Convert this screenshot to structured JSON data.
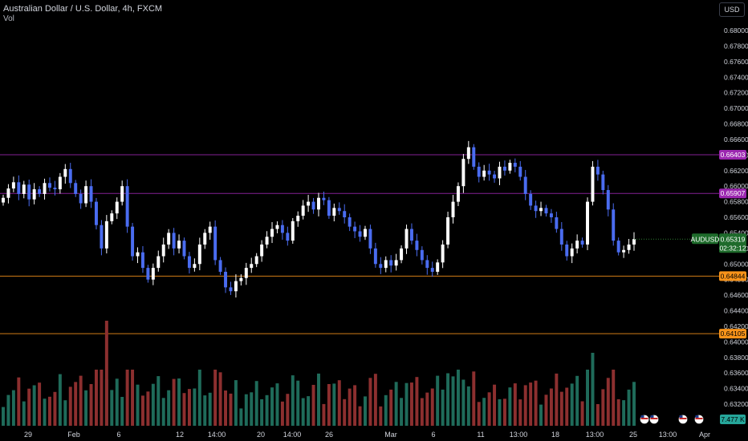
{
  "header": {
    "title": "Australian Dollar / U.S. Dollar, 4h, FXCM",
    "indicator": "Vol",
    "currency": "USD"
  },
  "colors": {
    "up": "#ffffff",
    "down": "#4a6cf0",
    "vol_up": "#1f6b5a",
    "vol_down": "#8c2f2f",
    "level_purple": "#9c27b0",
    "level_orange": "#f7931a",
    "price_green": "#1e6b2b"
  },
  "chart_data": {
    "type": "candlestick",
    "symbol": "AUDUSD",
    "price_ticks": [
      "0.68000",
      "0.67800",
      "0.67600",
      "0.67400",
      "0.67200",
      "0.67000",
      "0.66800",
      "0.66600",
      "0.66400",
      "0.66200",
      "0.66000",
      "0.65800",
      "0.65600",
      "0.65400",
      "0.65200",
      "0.65000",
      "0.64800",
      "0.64600",
      "0.64400",
      "0.64200",
      "0.64000",
      "0.63800",
      "0.63600",
      "0.63400",
      "0.63200"
    ],
    "x_ticks": [
      "29",
      "Feb",
      "6",
      "12",
      "14:00",
      "20",
      "14:00",
      "26",
      "Mar",
      "6",
      "11",
      "13:00",
      "18",
      "13:00",
      "25",
      "13:00",
      "Apr"
    ],
    "levels": [
      {
        "value": 0.66403,
        "label": "0.66403",
        "color": "purple"
      },
      {
        "value": 0.65907,
        "label": "0.65907",
        "color": "purple"
      },
      {
        "value": 0.64844,
        "label": "0.64844",
        "color": "orange"
      },
      {
        "value": 0.64105,
        "label": "0.64105",
        "color": "orange"
      }
    ],
    "last_price": {
      "symbol": "AUDUSD",
      "value": "0.65319",
      "countdown": "02:32:12"
    },
    "volume_label": "7.477 K",
    "close_path": [
      0.6585,
      0.6597,
      0.6605,
      0.659,
      0.6602,
      0.6583,
      0.6596,
      0.659,
      0.6604,
      0.6598,
      0.6596,
      0.6612,
      0.6622,
      0.6604,
      0.659,
      0.6578,
      0.66,
      0.658,
      0.655,
      0.652,
      0.6555,
      0.6565,
      0.658,
      0.66,
      0.6548,
      0.651,
      0.6515,
      0.6495,
      0.648,
      0.6495,
      0.651,
      0.6525,
      0.654,
      0.652,
      0.653,
      0.651,
      0.6495,
      0.65,
      0.6525,
      0.654,
      0.6548,
      0.6505,
      0.649,
      0.647,
      0.6465,
      0.6478,
      0.6482,
      0.6495,
      0.65,
      0.651,
      0.6525,
      0.6535,
      0.6545,
      0.655,
      0.654,
      0.653,
      0.6555,
      0.6562,
      0.6575,
      0.658,
      0.657,
      0.6585,
      0.6582,
      0.6562,
      0.6572,
      0.6568,
      0.656,
      0.6548,
      0.6542,
      0.6535,
      0.6545,
      0.652,
      0.65,
      0.6495,
      0.6505,
      0.6498,
      0.6505,
      0.652,
      0.6545,
      0.653,
      0.6518,
      0.6505,
      0.6495,
      0.649,
      0.6502,
      0.6525,
      0.656,
      0.658,
      0.66,
      0.6635,
      0.665,
      0.6625,
      0.6612,
      0.662,
      0.6615,
      0.661,
      0.6625,
      0.662,
      0.663,
      0.6625,
      0.6612,
      0.659,
      0.6575,
      0.6568,
      0.6572,
      0.6565,
      0.656,
      0.6545,
      0.6525,
      0.651,
      0.652,
      0.653,
      0.6525,
      0.658,
      0.6625,
      0.6615,
      0.6595,
      0.657,
      0.653,
      0.6515,
      0.6518,
      0.6525,
      0.6532
    ]
  }
}
